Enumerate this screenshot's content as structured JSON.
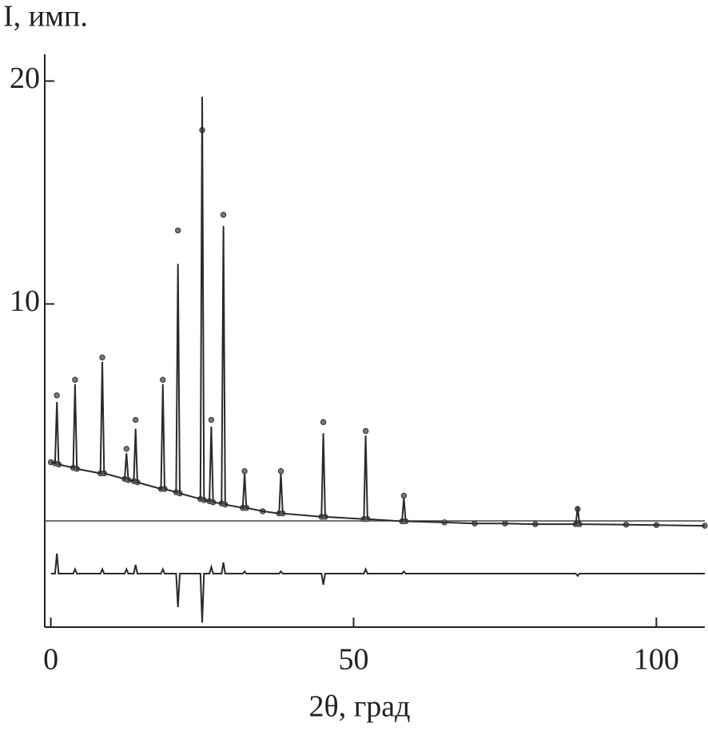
{
  "chart_data": {
    "type": "line",
    "y_label": "I, имп.",
    "x_label": "2θ, град",
    "x": [
      0,
      0.7,
      1,
      1.3,
      3.7,
      4,
      4.3,
      8.2,
      8.5,
      8.8,
      12.2,
      12.5,
      12.8,
      13.7,
      14,
      14.3,
      18.2,
      18.5,
      18.8,
      20.7,
      21,
      21.3,
      24.7,
      25,
      25.3,
      26.2,
      26.5,
      26.8,
      28.2,
      28.5,
      28.8,
      31.7,
      32,
      32.3,
      35,
      37.7,
      38,
      38.3,
      44.7,
      45,
      45.3,
      51.7,
      52,
      52.3,
      58,
      58.3,
      58.6,
      65,
      70,
      75,
      80,
      86.7,
      87,
      87.3,
      95,
      100,
      108
    ],
    "series": [
      {
        "color": "#777777",
        "style": "points",
        "values": [
          2.9,
          2.85,
          5.9,
          2.8,
          2.65,
          6.6,
          2.6,
          2.4,
          7.6,
          2.4,
          2.15,
          3.5,
          2.1,
          2.05,
          4.8,
          2.0,
          1.7,
          6.6,
          1.7,
          1.55,
          13.3,
          1.5,
          1.25,
          17.8,
          1.2,
          1.15,
          4.8,
          1.1,
          1.05,
          14,
          1.0,
          0.85,
          2.5,
          0.85,
          0.7,
          0.6,
          2.5,
          0.6,
          0.45,
          4.7,
          0.45,
          0.35,
          4.3,
          0.35,
          0.25,
          1.4,
          0.25,
          0.2,
          0.15,
          0.15,
          0.12,
          0.12,
          0.8,
          0.12,
          0.1,
          0.08,
          0.05
        ]
      },
      {
        "color": "#2a2a2a",
        "style": "line",
        "values": [
          2.9,
          2.85,
          5.6,
          2.8,
          2.65,
          6.4,
          2.6,
          2.4,
          7.4,
          2.4,
          2.15,
          3.3,
          2.1,
          2.05,
          4.4,
          2.0,
          1.7,
          6.4,
          1.7,
          1.55,
          11.8,
          1.5,
          1.25,
          19.3,
          1.2,
          1.15,
          4.5,
          1.1,
          1.05,
          13.5,
          1.0,
          0.85,
          2.4,
          0.85,
          0.7,
          0.6,
          2.4,
          0.6,
          0.45,
          4.2,
          0.45,
          0.35,
          4.1,
          0.35,
          0.25,
          1.3,
          0.25,
          0.2,
          0.15,
          0.15,
          0.12,
          0.12,
          0.9,
          0.12,
          0.1,
          0.08,
          0.05
        ]
      },
      {
        "color": "#2a2a2a",
        "style": "line",
        "values": [
          -2.1,
          -2.1,
          -1.2,
          -2.1,
          -2.1,
          -1.9,
          -2.1,
          -2.1,
          -1.9,
          -2.1,
          -2.1,
          -1.9,
          -2.1,
          -2.1,
          -1.7,
          -2.1,
          -2.1,
          -1.9,
          -2.1,
          -2.1,
          -3.6,
          -2.1,
          -2.1,
          -4.3,
          -2.1,
          -2.1,
          -1.8,
          -2.1,
          -2.1,
          -1.6,
          -2.1,
          -2.1,
          -2.0,
          -2.1,
          -2.1,
          -2.1,
          -2.0,
          -2.1,
          -2.1,
          -2.6,
          -2.1,
          -2.1,
          -1.9,
          -2.1,
          -2.1,
          -2.0,
          -2.1,
          -2.1,
          -2.1,
          -2.1,
          -2.1,
          -2.1,
          -2.2,
          -2.1,
          -2.1,
          -2.1,
          -2.1
        ]
      }
    ],
    "xlim": [
      -1,
      108
    ],
    "ylim": [
      -4.5,
      21.2
    ],
    "xticks": [
      0,
      50,
      100
    ],
    "yticks": [
      10,
      20
    ]
  }
}
